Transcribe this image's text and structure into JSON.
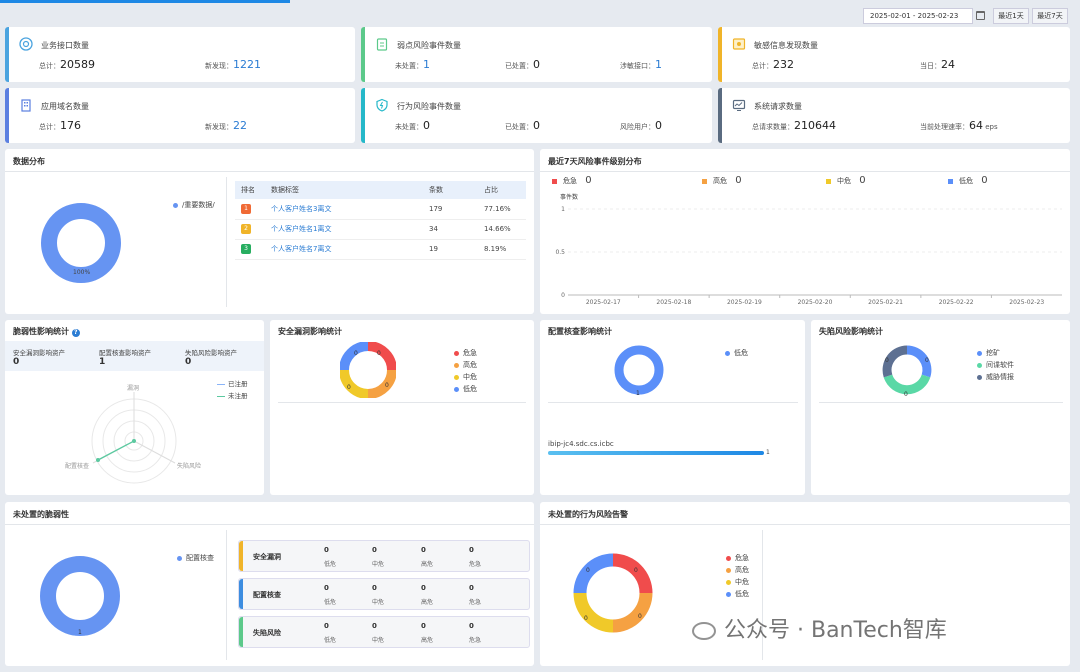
{
  "header": {
    "date_range": "2025-02-01 - 2025-02-23",
    "calendar_icon": "calendar-icon",
    "btn_1d": "最近1天",
    "btn_7d": "最近7天"
  },
  "kpis": {
    "api": {
      "title": "业务接口数量",
      "total_label": "总计：",
      "total": "20589",
      "new_label": "新发现：",
      "new": "1221",
      "color": "#4aa3df",
      "icon": "api-icon"
    },
    "weak": {
      "title": "弱点风险事件数量",
      "unhandled_label": "未处置：",
      "unhandled": "1",
      "handled_label": "已处置：",
      "handled": "0",
      "iface_label": "涉敏接口：",
      "iface": "1",
      "color": "#5cc98a",
      "icon": "clipboard-icon"
    },
    "sens": {
      "title": "敏感信息发现数量",
      "total_label": "总计：",
      "total": "232",
      "today_label": "当日：",
      "today": "24",
      "color": "#f0b429",
      "icon": "document-icon"
    },
    "domain": {
      "title": "应用域名数量",
      "total_label": "总计：",
      "total": "176",
      "new_label": "新发现：",
      "new": "22",
      "color": "#5b7fe0",
      "icon": "building-icon"
    },
    "behavior": {
      "title": "行为风险事件数量",
      "unhandled_label": "未处置：",
      "unhandled": "0",
      "handled_label": "已处置：",
      "handled": "0",
      "users_label": "风险用户：",
      "users": "0",
      "color": "#25b8c9",
      "icon": "shield-icon"
    },
    "req": {
      "title": "系统请求数量",
      "total_label": "总请求数量：",
      "total": "210644",
      "rate_label": "当前处理速率：",
      "rate": "64",
      "unit": "eps",
      "color": "#5a6b80",
      "icon": "monitor-icon"
    }
  },
  "dist": {
    "title": "数据分布",
    "legend": "/重要数据/",
    "pct": "100%",
    "color": "#6694f2",
    "table": {
      "headers": [
        "排名",
        "数据标签",
        "条数",
        "占比"
      ],
      "rows": [
        {
          "rank": "1",
          "label": "个人客户姓名3离文",
          "count": "179",
          "pct": "77.16%",
          "color": "#f06a35"
        },
        {
          "rank": "2",
          "label": "个人客户姓名1离文",
          "count": "34",
          "pct": "14.66%",
          "color": "#f0b429"
        },
        {
          "rank": "3",
          "label": "个人客户姓名7离文",
          "count": "19",
          "pct": "8.19%",
          "color": "#27ae60"
        }
      ]
    }
  },
  "trend": {
    "title": "最近7天风险事件级别分布",
    "legend": [
      {
        "name": "危急",
        "value": "0",
        "color": "#f04c4c"
      },
      {
        "name": "高危",
        "value": "0",
        "color": "#f5a142"
      },
      {
        "name": "中危",
        "value": "0",
        "color": "#f0c929"
      },
      {
        "name": "低危",
        "value": "0",
        "color": "#5b8ff9"
      }
    ],
    "ylabel": "事件数",
    "yticks": [
      "1",
      "0.5",
      "0"
    ],
    "xticks": [
      "2025-02-17",
      "2025-02-18",
      "2025-02-19",
      "2025-02-20",
      "2025-02-21",
      "2025-02-22",
      "2025-02-23"
    ]
  },
  "vuln": {
    "title": "脆弱性影响统计",
    "help_icon": "help-icon",
    "stats": [
      {
        "label": "安全漏洞影响资产",
        "value": "0"
      },
      {
        "label": "配置核查影响资产",
        "value": "1"
      },
      {
        "label": "失陷风险影响资产",
        "value": "0"
      }
    ],
    "legend": [
      "已注册",
      "未注册"
    ],
    "axes": [
      "漏洞",
      "配置核查",
      "失陷风险"
    ]
  },
  "secvuln": {
    "title": "安全漏洞影响统计",
    "labels": [
      "0",
      "0",
      "0",
      "0"
    ],
    "legend": [
      {
        "name": "危急",
        "color": "#f04c4c"
      },
      {
        "name": "高危",
        "color": "#f5a142"
      },
      {
        "name": "中危",
        "color": "#f0c929"
      },
      {
        "name": "低危",
        "color": "#5b8ff9"
      }
    ]
  },
  "config": {
    "title": "配置核查影响统计",
    "legend": [
      {
        "name": "低危",
        "color": "#5b8ff9"
      }
    ],
    "label": "1",
    "host": "ibip-jc4.sdc.cs.icbc",
    "host_value": "1",
    "bar_color": "#1e88e5"
  },
  "compromise": {
    "title": "失陷风险影响统计",
    "labels": [
      "0",
      "0",
      "0"
    ],
    "legend": [
      {
        "name": "挖矿",
        "color": "#5b8ff9"
      },
      {
        "name": "间谍软件",
        "color": "#5ad8a6"
      },
      {
        "name": "威胁情报",
        "color": "#5d7092"
      }
    ]
  },
  "unhandled_vuln": {
    "title": "未处置的脆弱性",
    "legend": "配置核查",
    "label": "1",
    "rows": [
      {
        "name": "安全漏洞",
        "color": "#f0b429",
        "values": [
          "0",
          "0",
          "0",
          "0"
        ]
      },
      {
        "name": "配置核查",
        "color": "#3d8de0",
        "values": [
          "0",
          "0",
          "0",
          "0"
        ]
      },
      {
        "name": "失陷风险",
        "color": "#5cc98a",
        "values": [
          "0",
          "0",
          "0",
          "0"
        ]
      }
    ],
    "levels": [
      "低危",
      "中危",
      "高危",
      "危急"
    ]
  },
  "unhandled_behavior": {
    "title": "未处置的行为风险告警",
    "labels": [
      "0",
      "0",
      "0",
      "0"
    ],
    "legend": [
      {
        "name": "危急",
        "color": "#f04c4c"
      },
      {
        "name": "高危",
        "color": "#f5a142"
      },
      {
        "name": "中危",
        "color": "#f0c929"
      },
      {
        "name": "低危",
        "color": "#5b8ff9"
      }
    ]
  },
  "watermark": "公众号 · BanTech智库"
}
